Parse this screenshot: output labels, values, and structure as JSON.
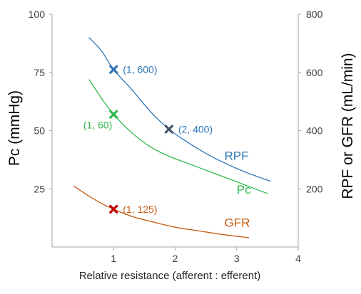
{
  "chart_data": {
    "type": "line",
    "xlabel": "Relative resistance (afferent : efferent)",
    "ylabel_left": "Pc (mmHg)",
    "ylabel_right": "RPF or GFR (mL/min)",
    "x_ticks": [
      "1",
      "2",
      "3",
      "4"
    ],
    "x_tick_values": [
      1,
      2,
      3,
      4
    ],
    "xlim": [
      0.0,
      4.0
    ],
    "y_left_ticks": [
      "25",
      "50",
      "75",
      "100"
    ],
    "y_left_tick_values": [
      25,
      50,
      75,
      100
    ],
    "y_left_lim": [
      0,
      100
    ],
    "y_right_ticks": [
      "200",
      "400",
      "600",
      "800"
    ],
    "y_right_tick_values": [
      200,
      400,
      600,
      800
    ],
    "y_right_lim": [
      0,
      800
    ],
    "grid": false,
    "series": [
      {
        "name": "RPF",
        "axis": "right",
        "color": "#2E75B6",
        "x": [
          0.6,
          0.8,
          1.0,
          1.3,
          1.6,
          1.9,
          2.2,
          2.6,
          3.0,
          3.3,
          3.55
        ],
        "y": [
          720,
          675,
          610,
          540,
          465,
          405,
          360,
          310,
          270,
          245,
          226
        ]
      },
      {
        "name": "Pc",
        "axis": "left",
        "color": "#2EB84A",
        "x": [
          0.6,
          0.8,
          1.0,
          1.3,
          1.6,
          1.9,
          2.2,
          2.6,
          3.0,
          3.3,
          3.5
        ],
        "y": [
          72,
          64,
          57,
          49,
          43,
          39,
          36,
          32,
          28,
          25,
          23
        ]
      },
      {
        "name": "GFR",
        "axis": "right",
        "color": "#C55A11",
        "x": [
          0.35,
          0.6,
          0.8,
          1.0,
          1.3,
          1.6,
          2.0,
          2.4,
          2.8,
          3.2
        ],
        "y": [
          210,
          175,
          150,
          130,
          105,
          88,
          68,
          55,
          42,
          32
        ]
      }
    ],
    "series_labels": [
      {
        "text": "RPF",
        "color": "#2E75B6",
        "x": 2.8,
        "y_axis": "right",
        "y": 300
      },
      {
        "text": "Pc",
        "color": "#2EB84A",
        "x": 3.0,
        "y_axis": "left",
        "y": 23
      },
      {
        "text": "GFR",
        "color": "#C55A11",
        "x": 2.8,
        "y_axis": "right",
        "y": 70
      }
    ],
    "markers": [
      {
        "series": "RPF",
        "x": 1,
        "y": 610,
        "axis": "right",
        "color": "#2E75B6",
        "label": "(1, 600)",
        "label_color": "#2E75B6",
        "label_side": "right"
      },
      {
        "series": "RPF",
        "x": 1.9,
        "y": 405,
        "axis": "right",
        "color": "#44546A",
        "label": "(2, 400)",
        "label_color": "#2E75B6",
        "label_side": "right"
      },
      {
        "series": "Pc",
        "x": 1.0,
        "y": 57,
        "axis": "left",
        "color": "#2EB84A",
        "label": "(1, 60)",
        "label_color": "#2EB84A",
        "label_side": "below-left"
      },
      {
        "series": "GFR",
        "x": 1.0,
        "y": 130,
        "axis": "right",
        "color": "#C00000",
        "label": "(1, 125)",
        "label_color": "#C55A11",
        "label_side": "right"
      }
    ]
  }
}
